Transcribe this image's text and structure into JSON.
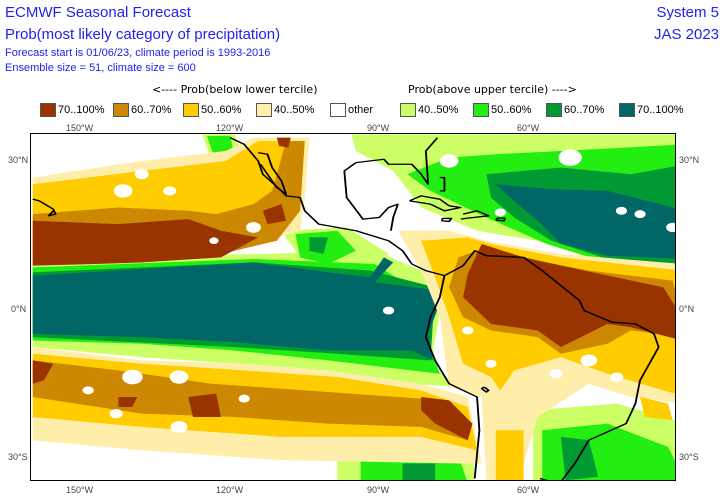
{
  "header": {
    "title": "ECMWF Seasonal Forecast",
    "subtitle": "Prob(most likely category of precipitation)",
    "info1": "Forecast start is 01/06/23, climate period is 1993-2016",
    "info2": "Ensemble size = 51, climate size = 600",
    "system": "System 5",
    "season": "JAS 2023"
  },
  "legend": {
    "below_header": "<---- Prob(below lower tercile)",
    "above_header": "Prob(above upper tercile) ---->",
    "items": [
      {
        "label": "70..100%",
        "color": "#993300"
      },
      {
        "label": "60..70%",
        "color": "#cc8800"
      },
      {
        "label": "50..60%",
        "color": "#ffcc00"
      },
      {
        "label": "40..50%",
        "color": "#ffeeaa"
      },
      {
        "label": "other",
        "color": "#ffffff"
      },
      {
        "label": "40..50%",
        "color": "#ccff66"
      },
      {
        "label": "50..60%",
        "color": "#22ee11"
      },
      {
        "label": "60..70%",
        "color": "#009933"
      },
      {
        "label": "70..100%",
        "color": "#006666"
      }
    ]
  },
  "axes": {
    "lon_labels": [
      "150°W",
      "120°W",
      "90°W",
      "60°W"
    ],
    "lat_labels": [
      "30°N",
      "0°N",
      "30°S"
    ]
  }
}
